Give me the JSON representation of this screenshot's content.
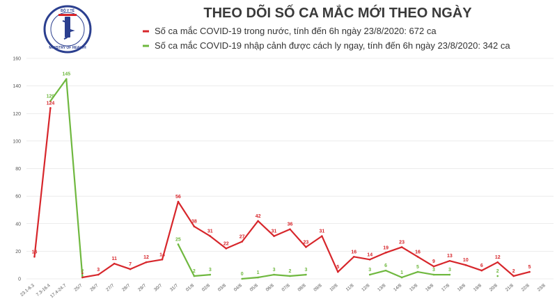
{
  "chart_data": {
    "type": "line",
    "title": "THEO DÕI SỐ CA MẮC MỚI THEO NGÀY",
    "ylim": [
      0,
      160
    ],
    "yticks": [
      0,
      20,
      40,
      60,
      80,
      100,
      120,
      140,
      160
    ],
    "categories": [
      "23.1-6.3",
      "7.3-16.4",
      "17.4-24.7",
      "25/7",
      "26/7",
      "27/7",
      "28/7",
      "29/7",
      "30/7",
      "31/7",
      "01/8",
      "02/8",
      "03/8",
      "04/8",
      "05/8",
      "06/8",
      "07/8",
      "08/8",
      "09/8",
      "10/8",
      "11/8",
      "12/8",
      "13/8",
      "14/8",
      "15/8",
      "16/8",
      "17/8",
      "18/8",
      "19/8",
      "20/8",
      "21/8",
      "22/8",
      "23/8"
    ],
    "series": [
      {
        "name": "Số ca mắc COVID-19 trong nước, tính đến 6h ngày 23/8/2020: 672 ca",
        "color": "#d7262b",
        "values": [
          16,
          124,
          null,
          1,
          3,
          11,
          7,
          12,
          14,
          56,
          38,
          31,
          22,
          27,
          42,
          31,
          36,
          23,
          31,
          5,
          16,
          14,
          19,
          23,
          16,
          9,
          13,
          10,
          6,
          12,
          2,
          5,
          null
        ]
      },
      {
        "name": "Số ca mắc COVID-19 nhập cảnh được cách ly ngay, tính đến 6h ngày 23/8/2020: 342 ca",
        "color": "#6fb83f",
        "values": [
          null,
          129,
          145,
          2,
          null,
          null,
          null,
          null,
          null,
          25,
          2,
          3,
          null,
          0,
          1,
          3,
          2,
          3,
          null,
          null,
          null,
          3,
          6,
          1,
          5,
          3,
          3,
          null,
          null,
          2,
          null,
          null,
          null
        ]
      }
    ]
  },
  "logo": {
    "top_text": "BỘ Y TẾ",
    "bottom_text": "MINISTRY OF HEALTH"
  }
}
